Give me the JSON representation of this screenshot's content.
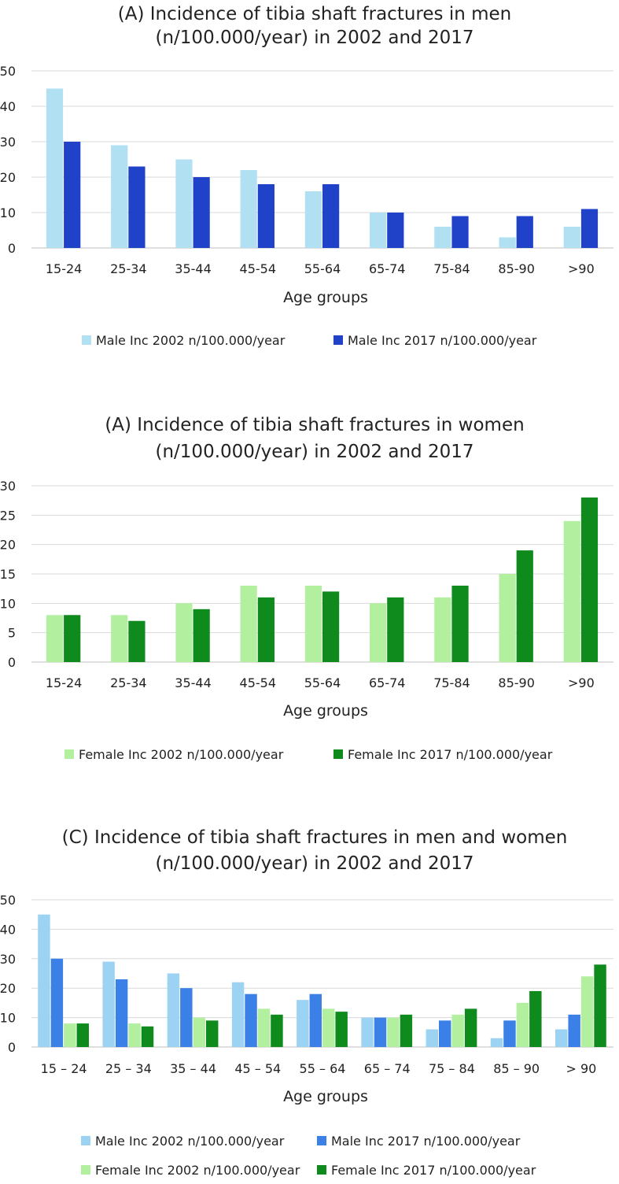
{
  "chart_data": [
    {
      "type": "bar",
      "title": [
        "(A) Incidence of tibia shaft fractures in men",
        "(n/100.000/year) in 2002 and 2017"
      ],
      "xlabel": "Age groups",
      "ylabel": "",
      "ylim": [
        0,
        50
      ],
      "yticks": [
        0,
        10,
        20,
        30,
        40,
        50
      ],
      "grid": true,
      "legend": "bottom",
      "categories": [
        "15-24",
        "25-34",
        "35-44",
        "45-54",
        "55-64",
        "65-74",
        "75-84",
        "85-90",
        ">90"
      ],
      "series": [
        {
          "name": "Male Inc 2002 n/100.000/year",
          "color": "#b0e0f2",
          "values": [
            45,
            29,
            25,
            22,
            16,
            10,
            6,
            3,
            6
          ]
        },
        {
          "name": "Male Inc 2017 n/100.000/year",
          "color": "#1f42c9",
          "values": [
            30,
            23,
            20,
            18,
            18,
            10,
            9,
            9,
            11
          ]
        }
      ]
    },
    {
      "type": "bar",
      "title": [
        "(A) Incidence of tibia shaft fractures in women",
        "(n/100.000/year) in 2002 and 2017"
      ],
      "xlabel": "Age groups",
      "ylabel": "",
      "ylim": [
        0,
        30
      ],
      "yticks": [
        0,
        5,
        10,
        15,
        20,
        25,
        30
      ],
      "grid": true,
      "legend": "bottom",
      "categories": [
        "15-24",
        "25-34",
        "35-44",
        "45-54",
        "55-64",
        "65-74",
        "75-84",
        "85-90",
        ">90"
      ],
      "series": [
        {
          "name": "Female Inc 2002 n/100.000/year",
          "color": "#b2f0a0",
          "values": [
            8,
            8,
            10,
            13,
            13,
            10,
            11,
            15,
            24
          ]
        },
        {
          "name": "Female Inc 2017 n/100.000/year",
          "color": "#0f8a1c",
          "values": [
            8,
            7,
            9,
            11,
            12,
            11,
            13,
            19,
            28
          ]
        }
      ]
    },
    {
      "type": "bar",
      "title": [
        "(C) Incidence of tibia shaft fractures in men and women",
        "(n/100.000/year) in 2002 and 2017"
      ],
      "xlabel": "Age groups",
      "ylabel": "",
      "ylim": [
        0,
        50
      ],
      "yticks": [
        0,
        10,
        20,
        30,
        40,
        50
      ],
      "grid": true,
      "legend": "bottom",
      "categories": [
        "15 – 24",
        "25 – 34",
        "35 – 44",
        "45 – 54",
        "55 – 64",
        "65 – 74",
        "75 – 84",
        "85 – 90",
        "> 90"
      ],
      "series": [
        {
          "name": "Male Inc 2002 n/100.000/year",
          "color": "#9dd3f2",
          "values": [
            45,
            29,
            25,
            22,
            16,
            10,
            6,
            3,
            6
          ]
        },
        {
          "name": "Male Inc 2017 n/100.000/year",
          "color": "#3a80e6",
          "values": [
            30,
            23,
            20,
            18,
            18,
            10,
            9,
            9,
            11
          ]
        },
        {
          "name": "Female Inc 2002 n/100.000/year",
          "color": "#b2f0a0",
          "values": [
            8,
            8,
            10,
            13,
            13,
            10,
            11,
            15,
            24
          ]
        },
        {
          "name": "Female Inc 2017 n/100.000/year",
          "color": "#0f8a1c",
          "values": [
            8,
            7,
            9,
            11,
            12,
            11,
            13,
            19,
            28
          ]
        }
      ]
    }
  ]
}
